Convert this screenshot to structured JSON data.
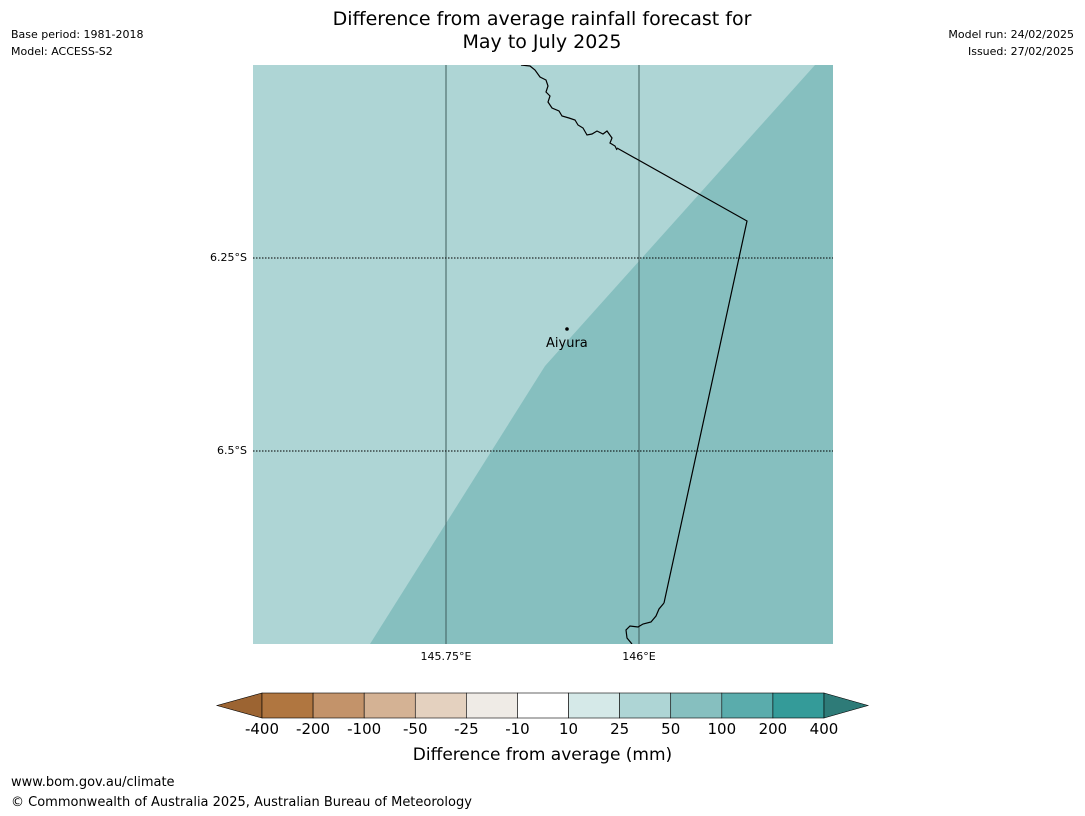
{
  "header": {
    "title_line1": "Difference from average rainfall forecast for",
    "title_line2": "May to July 2025",
    "base_period": "Base period: 1981-2018",
    "model": "Model: ACCESS-S2",
    "model_run": "Model run: 24/02/2025",
    "issued": "Issued: 27/02/2025"
  },
  "map": {
    "lat_labels": [
      "6.25°S",
      "6.5°S"
    ],
    "lon_labels": [
      "145.75°E",
      "146°E"
    ],
    "place": "Aiyura",
    "colors": {
      "class_10_25": "#d5e9e8",
      "class_25_50": "#aed5d5",
      "class_50_100": "#86bfbf",
      "border": "#000000"
    }
  },
  "colorbar": {
    "ticks": [
      "-400",
      "-200",
      "-100",
      "-50",
      "-25",
      "-10",
      "10",
      "25",
      "50",
      "100",
      "200",
      "400"
    ],
    "colors": [
      "#9c6432",
      "#b07640",
      "#c3936a",
      "#d4b294",
      "#e4d1bf",
      "#efebe6",
      "#ffffff",
      "#d5e9e8",
      "#aed5d5",
      "#86bfbf",
      "#5aacac",
      "#349b99",
      "#2e7b78"
    ],
    "label": "Difference from average (mm)"
  },
  "footer": {
    "url": "www.bom.gov.au/climate",
    "copyright": "© Commonwealth of Australia 2025, Australian Bureau of Meteorology"
  }
}
